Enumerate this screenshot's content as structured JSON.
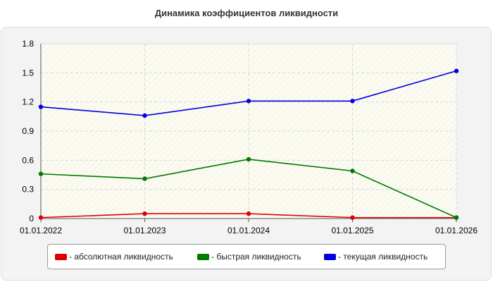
{
  "chart_data": {
    "type": "line",
    "title": "Динамика коэффициентов ликвидности",
    "x": [
      "01.01.2022",
      "01.01.2023",
      "01.01.2024",
      "01.01.2025",
      "01.01.2026"
    ],
    "yticks": [
      "0",
      "0.3",
      "0.6",
      "0.9",
      "1.2",
      "1.5",
      "1.8"
    ],
    "ylim": [
      0,
      1.8
    ],
    "grid": true,
    "legend_position": "bottom",
    "series": [
      {
        "name": "- абсолютная ликвидность",
        "color": "#e00000",
        "values": [
          0.01,
          0.05,
          0.05,
          0.01,
          0.01
        ]
      },
      {
        "name": "- быстрая ликвидность",
        "color": "#007a00",
        "values": [
          0.46,
          0.41,
          0.61,
          0.49,
          0.01
        ]
      },
      {
        "name": "- текущая ликвидность",
        "color": "#0000e0",
        "values": [
          1.15,
          1.06,
          1.21,
          1.21,
          1.52
        ]
      }
    ]
  }
}
